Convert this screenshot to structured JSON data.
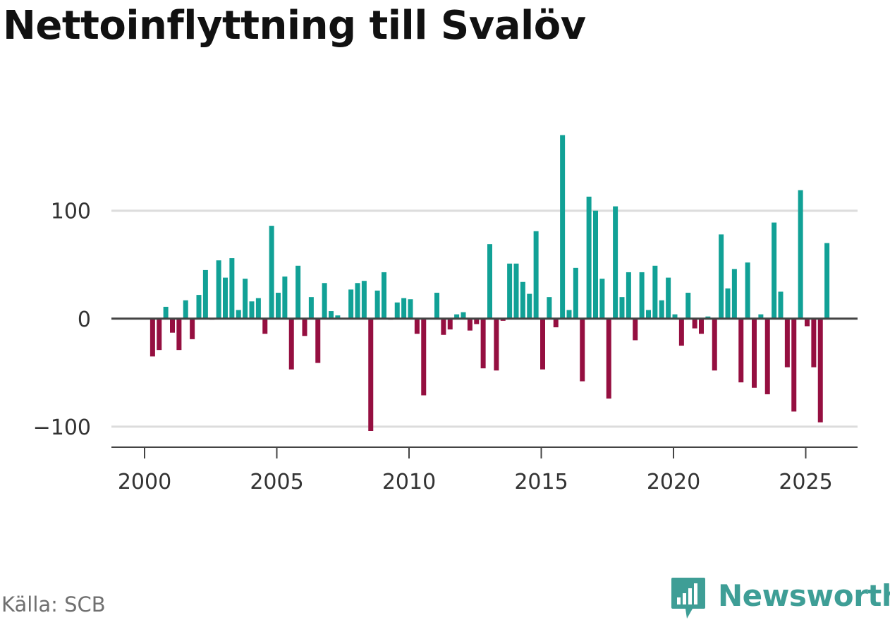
{
  "title": "Nettoinflyttning till Svalöv",
  "source": "Källa: SCB",
  "brand": "Newsworthy",
  "colors": {
    "positive": "#11a196",
    "negative": "#950f40",
    "axis": "#444444",
    "grid": "#dcdcdc",
    "text": "#333333"
  },
  "chart_data": {
    "type": "bar",
    "xlim": [
      1999.75,
      2025.75
    ],
    "ylim": [
      -104,
      171
    ],
    "yticks": [
      {
        "value": 100,
        "label": "100"
      },
      {
        "value": 0,
        "label": "0"
      },
      {
        "value": -100,
        "label": "−100"
      }
    ],
    "xticks": [
      {
        "value": 2000,
        "label": "2000"
      },
      {
        "value": 2005,
        "label": "2005"
      },
      {
        "value": 2010,
        "label": "2010"
      },
      {
        "value": 2015,
        "label": "2015"
      },
      {
        "value": 2020,
        "label": "2020"
      },
      {
        "value": 2025,
        "label": "2025"
      }
    ],
    "series": [
      {
        "name": "Nettoinflyttning",
        "start": 2000,
        "step": 0.25,
        "values": [
          -0.5,
          -35,
          -29,
          11,
          -13,
          -29,
          17,
          -19,
          22,
          45,
          -1,
          54,
          38,
          56,
          8,
          37,
          16,
          19,
          -14,
          86,
          24,
          39,
          -47,
          49,
          -16,
          20,
          -41,
          33,
          7,
          3,
          0,
          27,
          33,
          35,
          -104,
          26,
          43,
          -1,
          15,
          19,
          18,
          -14,
          -71,
          0,
          24,
          -15,
          -10,
          4,
          6,
          -11,
          -5,
          -46,
          69,
          -48,
          -2,
          51,
          51,
          34,
          23,
          81,
          -47,
          20,
          -8,
          170,
          8,
          47,
          -58,
          113,
          100,
          37,
          -74,
          104,
          20,
          43,
          -20,
          43,
          8,
          49,
          17,
          38,
          4,
          -25,
          24,
          -9,
          -14,
          2,
          -48,
          78,
          28,
          46,
          -59,
          52,
          -64,
          4,
          -70,
          89,
          25,
          -45,
          -86,
          119,
          -7,
          -45,
          -96,
          70
        ]
      }
    ]
  }
}
